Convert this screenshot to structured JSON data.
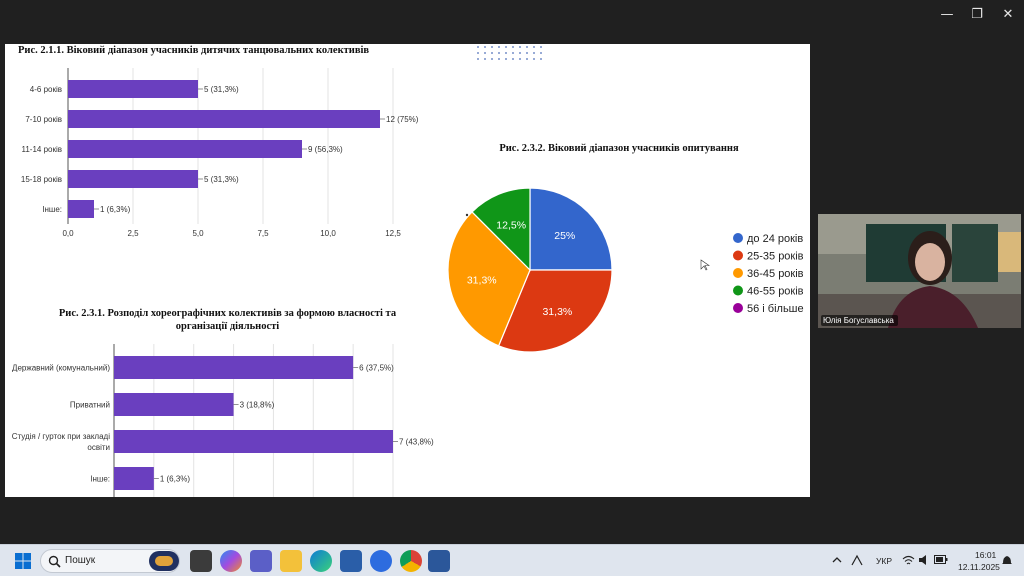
{
  "window": {
    "minimize_glyph": "—",
    "maximize_glyph": "❐",
    "close_glyph": "✕"
  },
  "chart_data": [
    {
      "type": "bar",
      "orientation": "horizontal",
      "title": "Рис. 2.1.1. Віковий діапазон учасників дитячих танцювальних колективів",
      "categories": [
        "4-6 років",
        "7-10 років",
        "11-14 років",
        "15-18 років",
        "Інше:"
      ],
      "values": [
        5,
        12,
        9,
        5,
        1
      ],
      "data_labels": [
        "5 (31,3%)",
        "12 (75%)",
        "9 (56,3%)",
        "5 (31,3%)",
        "1 (6,3%)"
      ],
      "xticks": [
        "0,0",
        "2,5",
        "5,0",
        "7,5",
        "10,0",
        "12,5"
      ],
      "xlim": [
        0,
        12.5
      ],
      "grid": true,
      "color": "#6a3fbf"
    },
    {
      "type": "bar",
      "orientation": "horizontal",
      "title": "Рис. 2.3.1. Розподіл хореографічних колективів за формою власності та організації діяльності",
      "title_lines": [
        "Рис. 2.3.1. Розподіл хореографічних колективів за формою власності та",
        "організації діяльності"
      ],
      "categories": [
        "Державний (комунальний)",
        "Приватний",
        "Студія / гурток при закладі освіти",
        "Інше:"
      ],
      "category_lines": [
        [
          "Державний (комунальний)"
        ],
        [
          "Приватний"
        ],
        [
          "Студія / гурток при закладі",
          "освіти"
        ],
        [
          "Інше:"
        ]
      ],
      "values": [
        6,
        3,
        7,
        1
      ],
      "data_labels": [
        "6 (37,5%)",
        "3 (18,8%)",
        "7 (43,8%)",
        "1 (6,3%)"
      ],
      "xlim": [
        0,
        7
      ],
      "grid": true,
      "color": "#6a3fbf"
    },
    {
      "type": "pie",
      "title": "Рис. 2.3.2. Віковий діапазон учасників опитування",
      "slices": [
        {
          "label": "до 24 років",
          "value": 25,
          "text": "25%",
          "color": "#3366cc"
        },
        {
          "label": "25-35 років",
          "value": 31.3,
          "text": "31,3%",
          "color": "#dc3912"
        },
        {
          "label": "36-45 років",
          "value": 31.3,
          "text": "31,3%",
          "color": "#ff9900"
        },
        {
          "label": "46-55 років",
          "value": 12.5,
          "text": "12,5%",
          "color": "#109618"
        },
        {
          "label": "56 і більше",
          "value": 0,
          "text": "",
          "color": "#990099"
        }
      ],
      "legend_position": "right"
    }
  ],
  "video": {
    "participant_name": "Юлія Богуславська"
  },
  "taskbar": {
    "search_placeholder": "Пошук",
    "language": "УКР",
    "time": "16:01",
    "date": "12.11.2025"
  }
}
